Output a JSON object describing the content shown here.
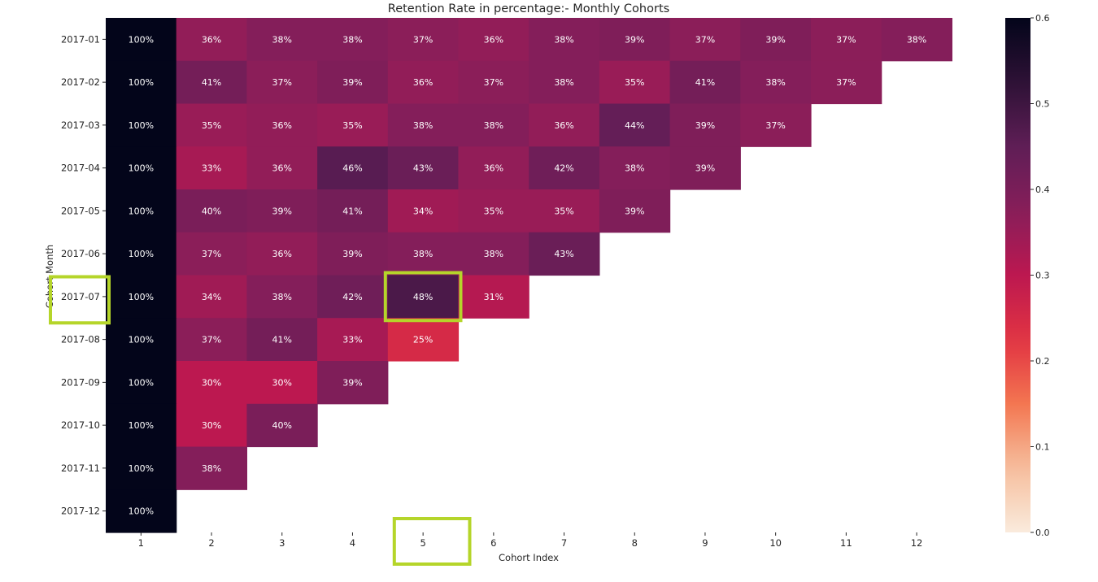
{
  "chart_data": {
    "type": "heatmap",
    "title": "Retention Rate in percentage:- Monthly Cohorts",
    "xlabel": "Cohort Index",
    "ylabel": "Cohort Month",
    "x_categories": [
      "1",
      "2",
      "3",
      "4",
      "5",
      "6",
      "7",
      "8",
      "9",
      "10",
      "11",
      "12"
    ],
    "y_categories": [
      "2017-01",
      "2017-02",
      "2017-03",
      "2017-04",
      "2017-05",
      "2017-06",
      "2017-07",
      "2017-08",
      "2017-09",
      "2017-10",
      "2017-11",
      "2017-12"
    ],
    "values": [
      [
        1.0,
        0.36,
        0.38,
        0.38,
        0.37,
        0.36,
        0.38,
        0.39,
        0.37,
        0.39,
        0.37,
        0.38
      ],
      [
        1.0,
        0.41,
        0.37,
        0.39,
        0.36,
        0.37,
        0.38,
        0.35,
        0.41,
        0.38,
        0.37,
        null
      ],
      [
        1.0,
        0.35,
        0.36,
        0.35,
        0.38,
        0.38,
        0.36,
        0.44,
        0.39,
        0.37,
        null,
        null
      ],
      [
        1.0,
        0.33,
        0.36,
        0.46,
        0.43,
        0.36,
        0.42,
        0.38,
        0.39,
        null,
        null,
        null
      ],
      [
        1.0,
        0.4,
        0.39,
        0.41,
        0.34,
        0.35,
        0.35,
        0.39,
        null,
        null,
        null,
        null
      ],
      [
        1.0,
        0.37,
        0.36,
        0.39,
        0.38,
        0.38,
        0.43,
        null,
        null,
        null,
        null,
        null
      ],
      [
        1.0,
        0.34,
        0.38,
        0.42,
        0.48,
        0.31,
        null,
        null,
        null,
        null,
        null,
        null
      ],
      [
        1.0,
        0.37,
        0.41,
        0.33,
        0.25,
        null,
        null,
        null,
        null,
        null,
        null,
        null
      ],
      [
        1.0,
        0.3,
        0.3,
        0.39,
        null,
        null,
        null,
        null,
        null,
        null,
        null,
        null
      ],
      [
        1.0,
        0.3,
        0.4,
        null,
        null,
        null,
        null,
        null,
        null,
        null,
        null,
        null
      ],
      [
        1.0,
        0.38,
        null,
        null,
        null,
        null,
        null,
        null,
        null,
        null,
        null,
        null
      ],
      [
        1.0,
        null,
        null,
        null,
        null,
        null,
        null,
        null,
        null,
        null,
        null,
        null
      ]
    ],
    "labels": [
      [
        "100%",
        "36%",
        "38%",
        "38%",
        "37%",
        "36%",
        "38%",
        "39%",
        "37%",
        "39%",
        "37%",
        "38%"
      ],
      [
        "100%",
        "41%",
        "37%",
        "39%",
        "36%",
        "37%",
        "38%",
        "35%",
        "41%",
        "38%",
        "37%",
        ""
      ],
      [
        "100%",
        "35%",
        "36%",
        "35%",
        "38%",
        "38%",
        "36%",
        "44%",
        "39%",
        "37%",
        "",
        ""
      ],
      [
        "100%",
        "33%",
        "36%",
        "46%",
        "43%",
        "36%",
        "42%",
        "38%",
        "39%",
        "",
        "",
        ""
      ],
      [
        "100%",
        "40%",
        "39%",
        "41%",
        "34%",
        "35%",
        "35%",
        "39%",
        "",
        "",
        "",
        ""
      ],
      [
        "100%",
        "37%",
        "36%",
        "39%",
        "38%",
        "38%",
        "43%",
        "",
        "",
        "",
        "",
        ""
      ],
      [
        "100%",
        "34%",
        "38%",
        "42%",
        "48%",
        "31%",
        "",
        "",
        "",
        "",
        "",
        ""
      ],
      [
        "100%",
        "37%",
        "41%",
        "33%",
        "25%",
        "",
        "",
        "",
        "",
        "",
        "",
        ""
      ],
      [
        "100%",
        "30%",
        "30%",
        "39%",
        "",
        "",
        "",
        "",
        "",
        "",
        "",
        ""
      ],
      [
        "100%",
        "30%",
        "40%",
        "",
        "",
        "",
        "",
        "",
        "",
        "",
        "",
        ""
      ],
      [
        "100%",
        "38%",
        "",
        "",
        "",
        "",
        "",
        "",
        "",
        "",
        "",
        ""
      ],
      [
        "100%",
        "",
        "",
        "",
        "",
        "",
        "",
        "",
        "",
        "",
        "",
        ""
      ]
    ],
    "colormap": "rocket_r",
    "vmin": 0.0,
    "vmax": 0.6,
    "colorbar_ticks": [
      "0.0",
      "0.1",
      "0.2",
      "0.3",
      "0.4",
      "0.5",
      "0.6"
    ],
    "highlights": [
      {
        "target": "y_tick",
        "row": "2017-07",
        "color": "#b5d52a"
      },
      {
        "target": "cell",
        "row": "2017-07",
        "column": "5",
        "color": "#b5d52a"
      },
      {
        "target": "x_tick",
        "column": "5",
        "color": "#b5d52a"
      }
    ]
  }
}
